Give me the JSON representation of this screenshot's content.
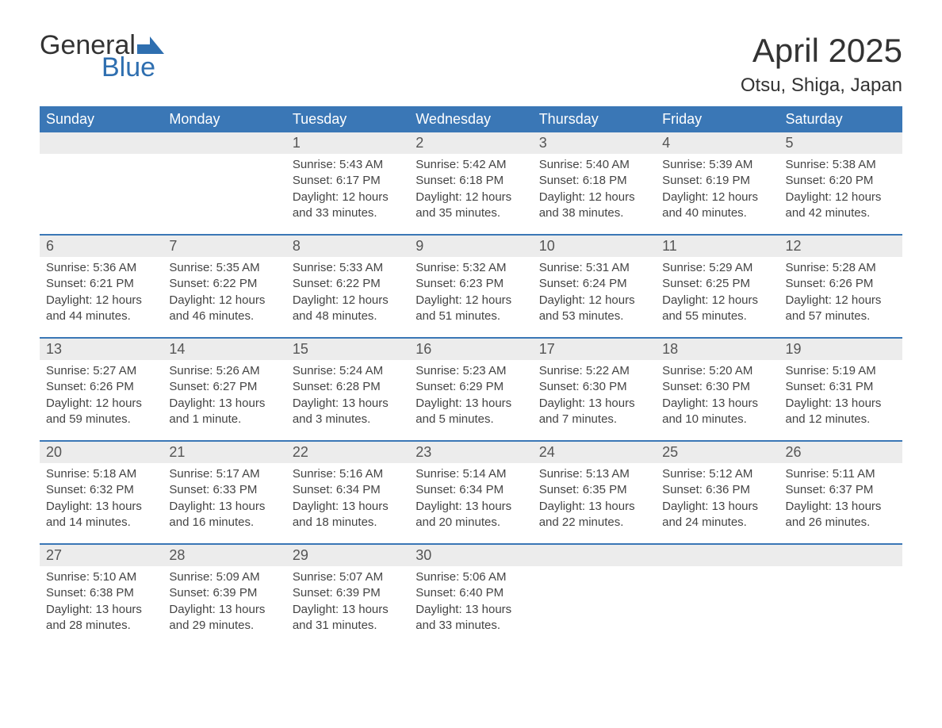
{
  "logo": {
    "text1": "General",
    "text2": "Blue",
    "accent_color": "#2f6fb0"
  },
  "title": "April 2025",
  "location": "Otsu, Shiga, Japan",
  "header_bg": "#3a77b6",
  "daynum_bg": "#ececec",
  "week_border_color": "#3a77b6",
  "weekdays": [
    "Sunday",
    "Monday",
    "Tuesday",
    "Wednesday",
    "Thursday",
    "Friday",
    "Saturday"
  ],
  "weeks": [
    [
      {
        "num": "",
        "sunrise": "",
        "sunset": "",
        "daylight": ""
      },
      {
        "num": "",
        "sunrise": "",
        "sunset": "",
        "daylight": ""
      },
      {
        "num": "1",
        "sunrise": "Sunrise: 5:43 AM",
        "sunset": "Sunset: 6:17 PM",
        "daylight": "Daylight: 12 hours and 33 minutes."
      },
      {
        "num": "2",
        "sunrise": "Sunrise: 5:42 AM",
        "sunset": "Sunset: 6:18 PM",
        "daylight": "Daylight: 12 hours and 35 minutes."
      },
      {
        "num": "3",
        "sunrise": "Sunrise: 5:40 AM",
        "sunset": "Sunset: 6:18 PM",
        "daylight": "Daylight: 12 hours and 38 minutes."
      },
      {
        "num": "4",
        "sunrise": "Sunrise: 5:39 AM",
        "sunset": "Sunset: 6:19 PM",
        "daylight": "Daylight: 12 hours and 40 minutes."
      },
      {
        "num": "5",
        "sunrise": "Sunrise: 5:38 AM",
        "sunset": "Sunset: 6:20 PM",
        "daylight": "Daylight: 12 hours and 42 minutes."
      }
    ],
    [
      {
        "num": "6",
        "sunrise": "Sunrise: 5:36 AM",
        "sunset": "Sunset: 6:21 PM",
        "daylight": "Daylight: 12 hours and 44 minutes."
      },
      {
        "num": "7",
        "sunrise": "Sunrise: 5:35 AM",
        "sunset": "Sunset: 6:22 PM",
        "daylight": "Daylight: 12 hours and 46 minutes."
      },
      {
        "num": "8",
        "sunrise": "Sunrise: 5:33 AM",
        "sunset": "Sunset: 6:22 PM",
        "daylight": "Daylight: 12 hours and 48 minutes."
      },
      {
        "num": "9",
        "sunrise": "Sunrise: 5:32 AM",
        "sunset": "Sunset: 6:23 PM",
        "daylight": "Daylight: 12 hours and 51 minutes."
      },
      {
        "num": "10",
        "sunrise": "Sunrise: 5:31 AM",
        "sunset": "Sunset: 6:24 PM",
        "daylight": "Daylight: 12 hours and 53 minutes."
      },
      {
        "num": "11",
        "sunrise": "Sunrise: 5:29 AM",
        "sunset": "Sunset: 6:25 PM",
        "daylight": "Daylight: 12 hours and 55 minutes."
      },
      {
        "num": "12",
        "sunrise": "Sunrise: 5:28 AM",
        "sunset": "Sunset: 6:26 PM",
        "daylight": "Daylight: 12 hours and 57 minutes."
      }
    ],
    [
      {
        "num": "13",
        "sunrise": "Sunrise: 5:27 AM",
        "sunset": "Sunset: 6:26 PM",
        "daylight": "Daylight: 12 hours and 59 minutes."
      },
      {
        "num": "14",
        "sunrise": "Sunrise: 5:26 AM",
        "sunset": "Sunset: 6:27 PM",
        "daylight": "Daylight: 13 hours and 1 minute."
      },
      {
        "num": "15",
        "sunrise": "Sunrise: 5:24 AM",
        "sunset": "Sunset: 6:28 PM",
        "daylight": "Daylight: 13 hours and 3 minutes."
      },
      {
        "num": "16",
        "sunrise": "Sunrise: 5:23 AM",
        "sunset": "Sunset: 6:29 PM",
        "daylight": "Daylight: 13 hours and 5 minutes."
      },
      {
        "num": "17",
        "sunrise": "Sunrise: 5:22 AM",
        "sunset": "Sunset: 6:30 PM",
        "daylight": "Daylight: 13 hours and 7 minutes."
      },
      {
        "num": "18",
        "sunrise": "Sunrise: 5:20 AM",
        "sunset": "Sunset: 6:30 PM",
        "daylight": "Daylight: 13 hours and 10 minutes."
      },
      {
        "num": "19",
        "sunrise": "Sunrise: 5:19 AM",
        "sunset": "Sunset: 6:31 PM",
        "daylight": "Daylight: 13 hours and 12 minutes."
      }
    ],
    [
      {
        "num": "20",
        "sunrise": "Sunrise: 5:18 AM",
        "sunset": "Sunset: 6:32 PM",
        "daylight": "Daylight: 13 hours and 14 minutes."
      },
      {
        "num": "21",
        "sunrise": "Sunrise: 5:17 AM",
        "sunset": "Sunset: 6:33 PM",
        "daylight": "Daylight: 13 hours and 16 minutes."
      },
      {
        "num": "22",
        "sunrise": "Sunrise: 5:16 AM",
        "sunset": "Sunset: 6:34 PM",
        "daylight": "Daylight: 13 hours and 18 minutes."
      },
      {
        "num": "23",
        "sunrise": "Sunrise: 5:14 AM",
        "sunset": "Sunset: 6:34 PM",
        "daylight": "Daylight: 13 hours and 20 minutes."
      },
      {
        "num": "24",
        "sunrise": "Sunrise: 5:13 AM",
        "sunset": "Sunset: 6:35 PM",
        "daylight": "Daylight: 13 hours and 22 minutes."
      },
      {
        "num": "25",
        "sunrise": "Sunrise: 5:12 AM",
        "sunset": "Sunset: 6:36 PM",
        "daylight": "Daylight: 13 hours and 24 minutes."
      },
      {
        "num": "26",
        "sunrise": "Sunrise: 5:11 AM",
        "sunset": "Sunset: 6:37 PM",
        "daylight": "Daylight: 13 hours and 26 minutes."
      }
    ],
    [
      {
        "num": "27",
        "sunrise": "Sunrise: 5:10 AM",
        "sunset": "Sunset: 6:38 PM",
        "daylight": "Daylight: 13 hours and 28 minutes."
      },
      {
        "num": "28",
        "sunrise": "Sunrise: 5:09 AM",
        "sunset": "Sunset: 6:39 PM",
        "daylight": "Daylight: 13 hours and 29 minutes."
      },
      {
        "num": "29",
        "sunrise": "Sunrise: 5:07 AM",
        "sunset": "Sunset: 6:39 PM",
        "daylight": "Daylight: 13 hours and 31 minutes."
      },
      {
        "num": "30",
        "sunrise": "Sunrise: 5:06 AM",
        "sunset": "Sunset: 6:40 PM",
        "daylight": "Daylight: 13 hours and 33 minutes."
      },
      {
        "num": "",
        "sunrise": "",
        "sunset": "",
        "daylight": ""
      },
      {
        "num": "",
        "sunrise": "",
        "sunset": "",
        "daylight": ""
      },
      {
        "num": "",
        "sunrise": "",
        "sunset": "",
        "daylight": ""
      }
    ]
  ]
}
